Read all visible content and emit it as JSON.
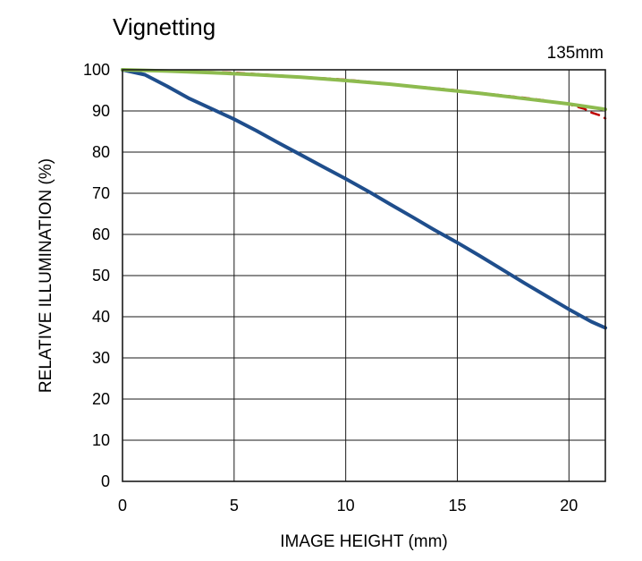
{
  "chart_data": {
    "type": "line",
    "title": "Vignetting",
    "subtitle": "135mm",
    "xlabel": "IMAGE HEIGHT (mm)",
    "ylabel": "RELATIVE ILLUMINATION (%)",
    "xlim": [
      0,
      21.63
    ],
    "ylim": [
      0,
      100
    ],
    "xticks": [
      0,
      5,
      10,
      15,
      20
    ],
    "yticks": [
      0,
      10,
      20,
      30,
      40,
      50,
      60,
      70,
      80,
      90,
      100
    ],
    "grid": true,
    "series": [
      {
        "color": "#1f4e8c",
        "x": [
          0,
          1,
          2,
          3,
          4,
          5,
          6,
          7,
          8,
          9,
          10,
          11,
          12,
          13,
          14,
          15,
          16,
          17,
          18,
          19,
          20,
          21,
          21.63
        ],
        "y": [
          100,
          98.8,
          96.0,
          93.0,
          90.5,
          88.0,
          85.2,
          82.2,
          79.3,
          76.4,
          73.5,
          70.5,
          67.3,
          64.2,
          61.0,
          58.0,
          54.8,
          51.5,
          48.2,
          45.0,
          41.8,
          38.8,
          37.3
        ]
      },
      {
        "color": "#c00000",
        "dashed": true,
        "x": [
          0,
          5,
          10,
          15,
          18,
          19,
          20,
          20.7,
          21.0,
          21.35,
          21.63
        ],
        "y": [
          100,
          99.3,
          97.6,
          95.0,
          93.2,
          92.5,
          91.6,
          90.5,
          89.6,
          89.0,
          88.2
        ]
      },
      {
        "color": "#8dbb4f",
        "x": [
          0,
          2,
          4,
          6,
          8,
          10,
          12,
          14,
          16,
          18,
          20,
          21.63
        ],
        "y": [
          100,
          99.7,
          99.3,
          98.8,
          98.2,
          97.4,
          96.5,
          95.4,
          94.3,
          93.0,
          91.7,
          90.4
        ]
      }
    ]
  }
}
